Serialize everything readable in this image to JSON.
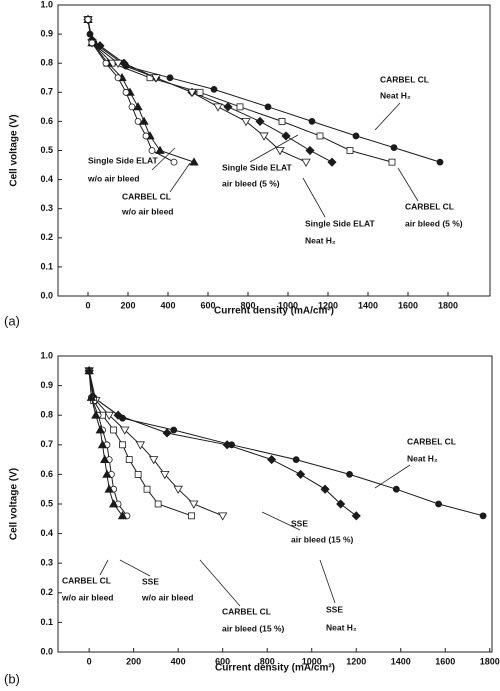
{
  "chart_data": [
    {
      "type": "line",
      "panel_label": "(a)",
      "xlabel": "Current density (mA/cm²)",
      "ylabel": "Cell voltage (V)",
      "xlim": [
        -150,
        2010
      ],
      "ylim": [
        0,
        1.0
      ],
      "xticks": [
        0,
        200,
        400,
        600,
        800,
        1000,
        1200,
        1400,
        1600,
        1800
      ],
      "yticks": [
        {
          "value": 0,
          "label": "0.0"
        },
        0.1,
        0.2,
        0.3,
        0.4,
        0.5,
        0.6,
        0.7,
        0.8,
        0.9,
        {
          "value": 1.0,
          "label": "1.0"
        }
      ],
      "series": [
        {
          "color": "#1a1a1a",
          "marker": "circle",
          "filled": true,
          "x": [
            0,
            10,
            30,
            190,
            410,
            630,
            900,
            1120,
            1340,
            1530,
            1760
          ],
          "values": [
            0.95,
            0.9,
            0.87,
            0.79,
            0.75,
            0.71,
            0.65,
            0.6,
            0.55,
            0.51,
            0.46
          ]
        },
        {
          "color": "#1a1a1a",
          "marker": "diamond",
          "filled": true,
          "x": [
            0,
            20,
            60,
            180,
            340,
            520,
            700,
            860,
            990,
            1110,
            1220
          ],
          "values": [
            0.95,
            0.88,
            0.86,
            0.8,
            0.75,
            0.7,
            0.65,
            0.6,
            0.55,
            0.5,
            0.46
          ]
        },
        {
          "color": "#1a1a1a",
          "marker": "square",
          "filled": false,
          "x": [
            0,
            20,
            120,
            310,
            560,
            760,
            970,
            1160,
            1310,
            1520
          ],
          "values": [
            0.95,
            0.87,
            0.8,
            0.75,
            0.7,
            0.65,
            0.6,
            0.55,
            0.5,
            0.46
          ]
        },
        {
          "color": "#1a1a1a",
          "marker": "triangle-down",
          "filled": false,
          "x": [
            0,
            20,
            150,
            340,
            520,
            650,
            790,
            880,
            960,
            1090
          ],
          "values": [
            0.95,
            0.87,
            0.8,
            0.75,
            0.7,
            0.65,
            0.6,
            0.55,
            0.5,
            0.46
          ]
        },
        {
          "color": "#1a1a1a",
          "marker": "triangle-up",
          "filled": true,
          "x": [
            0,
            20,
            100,
            170,
            210,
            250,
            280,
            310,
            360,
            530
          ],
          "values": [
            0.95,
            0.87,
            0.8,
            0.75,
            0.7,
            0.65,
            0.6,
            0.55,
            0.5,
            0.46
          ]
        },
        {
          "color": "#1a1a1a",
          "marker": "circle",
          "filled": false,
          "x": [
            0,
            20,
            90,
            150,
            190,
            220,
            250,
            290,
            320,
            430
          ],
          "values": [
            0.95,
            0.87,
            0.8,
            0.75,
            0.7,
            0.65,
            0.6,
            0.55,
            0.5,
            0.46
          ]
        }
      ],
      "annotations": [
        [
          "CARBEL CL",
          "Neat H₂"
        ],
        [
          "Single Side ELAT",
          "w/o air bleed"
        ],
        [
          "CARBEL CL",
          "w/o air bleed"
        ],
        [
          "Single Side ELAT",
          "air bleed (5 %)"
        ],
        [
          "Single Side ELAT",
          "Neat H₂"
        ],
        [
          "CARBEL CL",
          "air bleed (5 %)"
        ]
      ]
    },
    {
      "type": "line",
      "panel_label": "(b)",
      "xlabel": "Current density (mA/cm²)",
      "ylabel": "Cell voltage (V)",
      "xlim": [
        -140,
        1810
      ],
      "ylim": [
        0,
        1.0
      ],
      "xticks": [
        0,
        200,
        400,
        600,
        800,
        1000,
        1200,
        1400,
        1600,
        1800
      ],
      "yticks": [
        {
          "value": 0,
          "label": "0.0"
        },
        0.1,
        0.2,
        0.3,
        0.4,
        0.5,
        0.6,
        0.7,
        0.8,
        0.9,
        {
          "value": 1.0,
          "label": "1.0"
        }
      ],
      "series": [
        {
          "color": "#1a1a1a",
          "marker": "circle",
          "filled": true,
          "x": [
            0,
            20,
            150,
            380,
            640,
            930,
            1170,
            1380,
            1570,
            1770
          ],
          "values": [
            0.95,
            0.86,
            0.79,
            0.75,
            0.7,
            0.65,
            0.6,
            0.55,
            0.5,
            0.46
          ]
        },
        {
          "color": "#1a1a1a",
          "marker": "diamond",
          "filled": true,
          "x": [
            0,
            20,
            130,
            350,
            620,
            820,
            950,
            1060,
            1130,
            1200
          ],
          "values": [
            0.95,
            0.86,
            0.8,
            0.74,
            0.7,
            0.65,
            0.6,
            0.55,
            0.5,
            0.46
          ]
        },
        {
          "color": "#1a1a1a",
          "marker": "triangle-down",
          "filled": false,
          "x": [
            0,
            30,
            90,
            160,
            230,
            290,
            340,
            400,
            470,
            600
          ],
          "values": [
            0.95,
            0.85,
            0.8,
            0.75,
            0.7,
            0.65,
            0.6,
            0.55,
            0.5,
            0.46
          ]
        },
        {
          "color": "#1a1a1a",
          "marker": "square",
          "filled": false,
          "x": [
            0,
            20,
            60,
            110,
            150,
            180,
            220,
            260,
            310,
            460
          ],
          "values": [
            0.95,
            0.85,
            0.8,
            0.75,
            0.7,
            0.65,
            0.6,
            0.55,
            0.5,
            0.46
          ]
        },
        {
          "color": "#1a1a1a",
          "marker": "circle",
          "filled": false,
          "x": [
            0,
            10,
            40,
            60,
            80,
            90,
            100,
            110,
            130,
            170
          ],
          "values": [
            0.95,
            0.86,
            0.8,
            0.75,
            0.7,
            0.65,
            0.6,
            0.55,
            0.5,
            0.46
          ]
        },
        {
          "color": "#1a1a1a",
          "marker": "triangle-up",
          "filled": true,
          "x": [
            0,
            10,
            30,
            50,
            60,
            70,
            80,
            90,
            110,
            150
          ],
          "values": [
            0.95,
            0.86,
            0.8,
            0.75,
            0.7,
            0.65,
            0.6,
            0.55,
            0.5,
            0.46
          ]
        }
      ],
      "annotations": [
        [
          "CARBEL CL",
          "Neat H₂"
        ],
        [
          "SSE",
          "air bleed (15 %)"
        ],
        [
          "CARBEL CL",
          "air bleed (15 %)"
        ],
        [
          "SSE",
          "Neat H₂"
        ],
        [
          "CARBEL CL",
          "w/o air bleed"
        ],
        [
          "SSE",
          "w/o air bleed"
        ]
      ]
    }
  ]
}
